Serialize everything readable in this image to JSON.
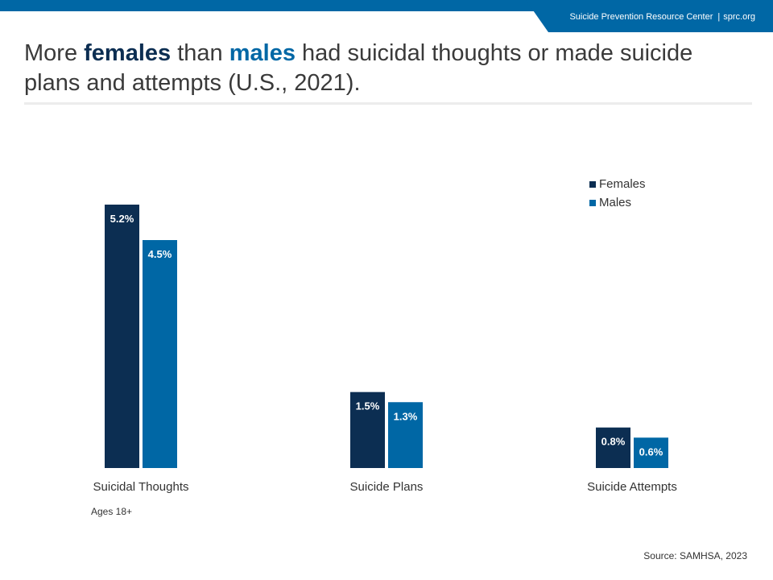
{
  "header": {
    "org_name": "Suicide Prevention Resource Center",
    "separator": "|",
    "site": "sprc.org"
  },
  "title": {
    "part1": "More ",
    "females_word": "females",
    "part2": " than ",
    "males_word": "males",
    "part3": " had suicidal thoughts or made suicide plans and attempts (U.S., 2021)."
  },
  "note": "Ages 18+",
  "source": "Source: SAMHSA, 2023",
  "colors": {
    "females": "#0c2e52",
    "males": "#0067a5",
    "accent": "#0067a5"
  },
  "chart_data": {
    "type": "bar",
    "categories": [
      "Suicidal Thoughts",
      "Suicide Plans",
      "Suicide Attempts"
    ],
    "series": [
      {
        "name": "Females",
        "values": [
          5.2,
          1.5,
          0.8
        ],
        "labels": [
          "5.2%",
          "1.5%",
          "0.8%"
        ]
      },
      {
        "name": "Males",
        "values": [
          4.5,
          1.3,
          0.6
        ],
        "labels": [
          "4.5%",
          "1.3%",
          "0.6%"
        ]
      }
    ],
    "ylim": [
      0,
      5.2
    ],
    "grid": false,
    "legend_position": "top-right"
  }
}
